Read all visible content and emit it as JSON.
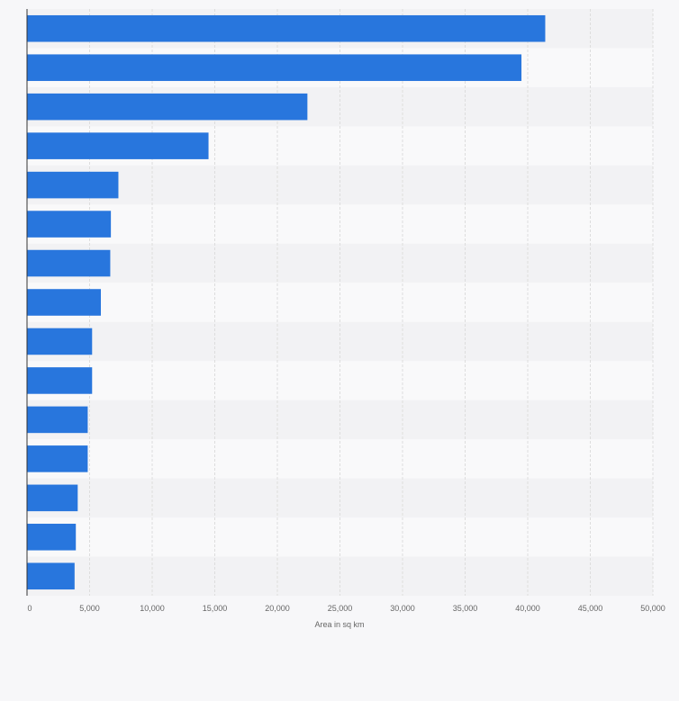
{
  "chart_data": {
    "type": "bar",
    "orientation": "horizontal",
    "categories": [
      "",
      "",
      "",
      "",
      "",
      "",
      "",
      "",
      "",
      "",
      "",
      "",
      "",
      "",
      ""
    ],
    "values": [
      41400,
      39500,
      22400,
      14500,
      7300,
      6700,
      6650,
      5900,
      5200,
      5200,
      4850,
      4850,
      4050,
      3900,
      3800
    ],
    "title": "",
    "xlabel": "Area in sq km",
    "ylabel": "",
    "xlim": [
      0,
      50000
    ],
    "x_ticks": [
      0,
      5000,
      10000,
      15000,
      20000,
      25000,
      30000,
      35000,
      40000,
      45000,
      50000
    ],
    "x_tick_labels": [
      "0",
      "5,000",
      "10,000",
      "15,000",
      "20,000",
      "25,000",
      "30,000",
      "35,000",
      "40,000",
      "45,000",
      "50,000"
    ],
    "grid": "vertical-dashed",
    "bar_color": "#2876dd",
    "band_colors": [
      "#f2f2f4",
      "#f9f9fa"
    ],
    "gridline_color": "#dddddd",
    "axis_color": "#333333"
  }
}
